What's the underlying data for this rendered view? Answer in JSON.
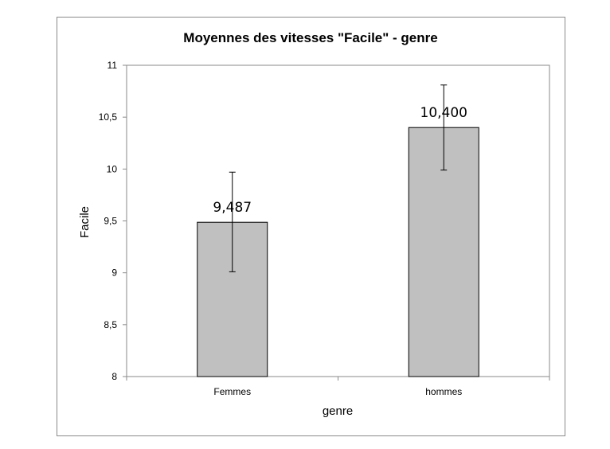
{
  "chart_data": {
    "type": "bar",
    "title": "Moyennes des vitesses \"Facile\" - genre",
    "xlabel": "genre",
    "ylabel": "Facile",
    "categories": [
      "Femmes",
      "hommes"
    ],
    "values": [
      9.487,
      10.4
    ],
    "data_labels": [
      "9,487",
      "10,400"
    ],
    "error_bars": [
      {
        "low": 9.01,
        "high": 9.97
      },
      {
        "low": 9.99,
        "high": 10.81
      }
    ],
    "ylim": [
      8,
      11
    ],
    "yticks": [
      8,
      8.5,
      9,
      9.5,
      10,
      10.5,
      11
    ],
    "ytick_labels": [
      "8",
      "8,5",
      "9",
      "9,5",
      "10",
      "10,5",
      "11"
    ],
    "grid": false,
    "legend": false,
    "bar_color": "#c0c0c0",
    "bar_border_color": "#000000",
    "frame_color": "#8a8a8a"
  }
}
